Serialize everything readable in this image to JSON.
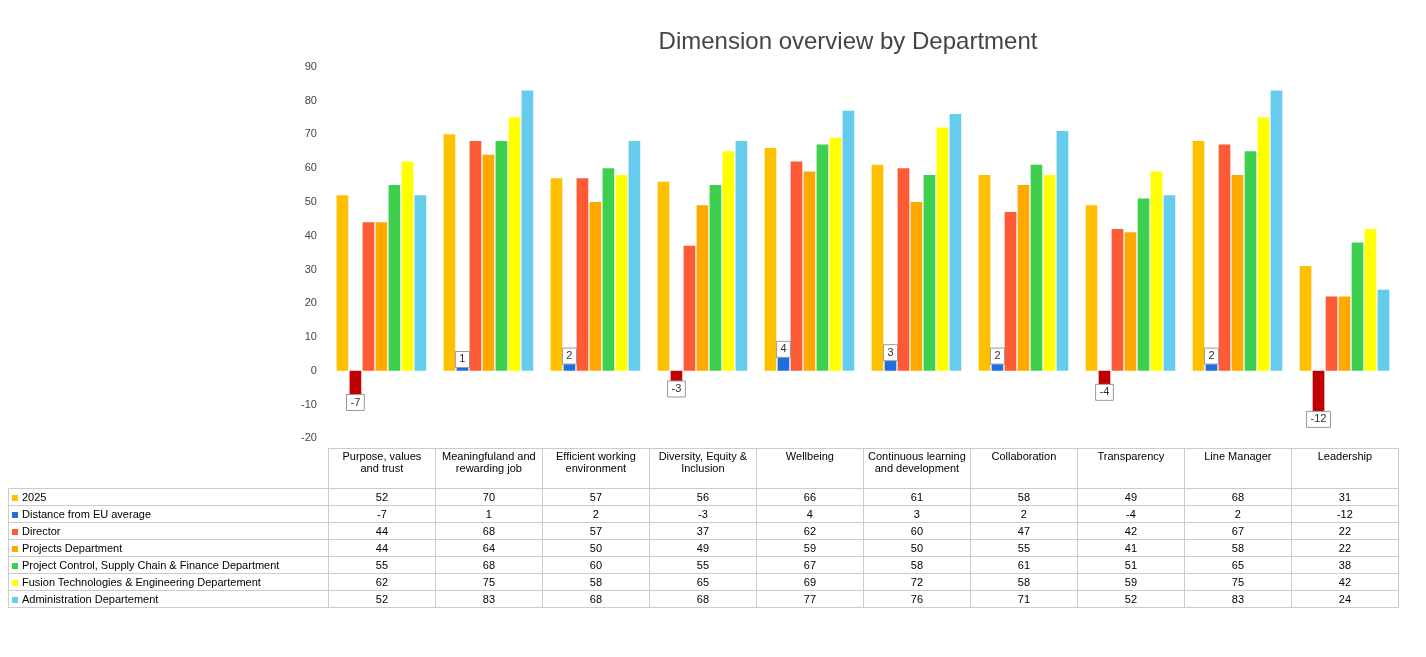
{
  "chart_data": {
    "type": "bar",
    "title": "Dimension overview by Department",
    "categories": [
      "Purpose, values and trust",
      "Meaningfuland and rewarding job",
      "Efficient working environment",
      "Diversity, Equity & Inclusion",
      "Wellbeing",
      "Continuous learning and development",
      "Collaboration",
      "Transparency",
      "Line Manager",
      "Leadership"
    ],
    "series": [
      {
        "name": "2025",
        "color": "#ffc000",
        "values": [
          52,
          70,
          57,
          56,
          66,
          61,
          58,
          49,
          68,
          31
        ]
      },
      {
        "name": "Distance from EU average",
        "color": "#1f6fe0",
        "colors": [
          "#c00000",
          "#1f6fe0",
          "#1f6fe0",
          "#c00000",
          "#1f6fe0",
          "#1f6fe0",
          "#1f6fe0",
          "#c00000",
          "#1f6fe0",
          "#c00000"
        ],
        "values": [
          -7,
          1,
          2,
          -3,
          4,
          3,
          2,
          -4,
          2,
          -12
        ]
      },
      {
        "name": "Director",
        "color": "#ff5a36",
        "values": [
          44,
          68,
          57,
          37,
          62,
          60,
          47,
          42,
          67,
          22
        ]
      },
      {
        "name": "Projects Department",
        "color": "#ffa800",
        "values": [
          44,
          64,
          50,
          49,
          59,
          50,
          55,
          41,
          58,
          22
        ]
      },
      {
        "name": "Project Control, Supply Chain & Finance Department",
        "color": "#3fcf4f",
        "values": [
          55,
          68,
          60,
          55,
          67,
          58,
          61,
          51,
          65,
          38
        ]
      },
      {
        "name": "Fusion Technologies & Engineering Departement",
        "color": "#ffff00",
        "values": [
          62,
          75,
          58,
          65,
          69,
          72,
          58,
          59,
          75,
          42
        ]
      },
      {
        "name": "Administration Departement",
        "color": "#66ccee",
        "values": [
          52,
          83,
          68,
          68,
          77,
          76,
          71,
          52,
          83,
          24
        ]
      }
    ],
    "ylim": [
      -20,
      90
    ],
    "yticks": [
      -20,
      -10,
      0,
      10,
      20,
      30,
      40,
      50,
      60,
      70,
      80,
      90
    ],
    "annotations": [
      "-7",
      "1",
      "2",
      "-3",
      "4",
      "3",
      "2",
      "-4",
      "2",
      "-12"
    ],
    "grid": false,
    "legend": "bottom",
    "data_labels": true
  }
}
